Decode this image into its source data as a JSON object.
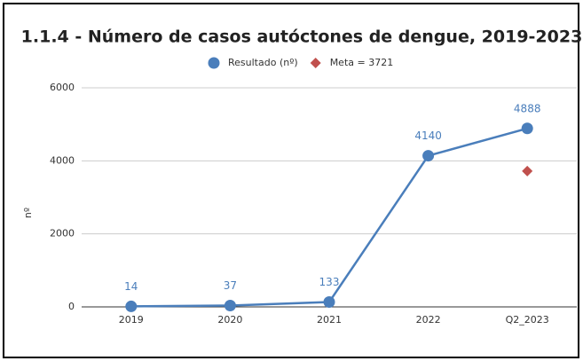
{
  "chart_data": {
    "type": "line",
    "title": "1.1.4 - Número de casos autóctones de dengue, 2019-2023",
    "y_label": "nº",
    "categories": [
      "2019",
      "2020",
      "2021",
      "2022",
      "Q2_2023"
    ],
    "series": [
      {
        "name": "Resultado (nº)",
        "color": "#4a7ebb",
        "marker": "circle",
        "values": [
          14,
          37,
          133,
          4140,
          4888
        ],
        "data_labels": true
      },
      {
        "name": "Meta = 3721",
        "color": "#c0504d",
        "marker": "diamond",
        "values": [
          null,
          null,
          null,
          null,
          3721
        ],
        "data_labels": false
      }
    ],
    "ylim": [
      0,
      6000
    ],
    "yticks": [
      0,
      2000,
      4000,
      6000
    ],
    "grid": true,
    "legend": "top"
  }
}
